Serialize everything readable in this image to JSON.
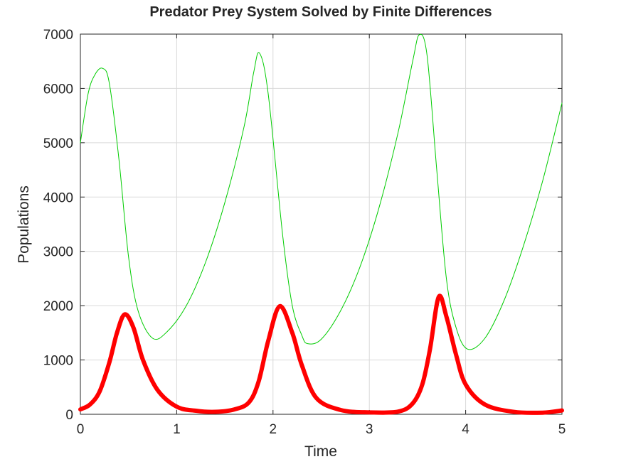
{
  "chart_data": {
    "type": "line",
    "title": "Predator Prey System Solved by Finite Differences",
    "xlabel": "Time",
    "ylabel": "Populations",
    "xlim": [
      0,
      5
    ],
    "ylim": [
      0,
      7000
    ],
    "xticks": [
      "0",
      "1",
      "2",
      "3",
      "4",
      "5"
    ],
    "yticks": [
      "0",
      "1000",
      "2000",
      "3000",
      "4000",
      "5000",
      "6000",
      "7000"
    ],
    "grid": true,
    "series": [
      {
        "color": "#00cc00",
        "line_style": "thin",
        "x": [
          0,
          0.08,
          0.15,
          0.23,
          0.3,
          0.4,
          0.5,
          0.6,
          0.75,
          0.9,
          1.1,
          1.3,
          1.5,
          1.7,
          1.8,
          1.86,
          1.95,
          2.1,
          2.2,
          2.3,
          2.36,
          2.5,
          2.7,
          2.9,
          3.1,
          3.3,
          3.45,
          3.52,
          3.6,
          3.7,
          3.8,
          3.9,
          4.02,
          4.2,
          4.4,
          4.6,
          4.8,
          5.0
        ],
        "values": [
          5000,
          5900,
          6250,
          6370,
          6100,
          4700,
          2900,
          1900,
          1400,
          1520,
          2000,
          2800,
          3900,
          5300,
          6300,
          6650,
          5900,
          3300,
          2000,
          1450,
          1300,
          1380,
          1900,
          2700,
          3800,
          5200,
          6500,
          6990,
          6600,
          4500,
          2500,
          1600,
          1200,
          1400,
          2100,
          3100,
          4300,
          5730
        ]
      },
      {
        "color": "#ff0000",
        "line_style": "thick",
        "x": [
          0,
          0.1,
          0.2,
          0.3,
          0.38,
          0.46,
          0.55,
          0.65,
          0.8,
          1.0,
          1.2,
          1.4,
          1.6,
          1.75,
          1.85,
          1.95,
          2.07,
          2.2,
          2.3,
          2.45,
          2.7,
          3.0,
          3.3,
          3.45,
          3.55,
          3.63,
          3.72,
          3.8,
          3.9,
          4.0,
          4.2,
          4.5,
          4.8,
          5.0
        ],
        "values": [
          90,
          180,
          420,
          950,
          1500,
          1840,
          1600,
          1000,
          450,
          140,
          65,
          45,
          90,
          220,
          600,
          1350,
          1990,
          1500,
          900,
          300,
          80,
          35,
          50,
          200,
          550,
          1200,
          2160,
          1800,
          1100,
          550,
          180,
          45,
          30,
          70
        ]
      }
    ]
  }
}
